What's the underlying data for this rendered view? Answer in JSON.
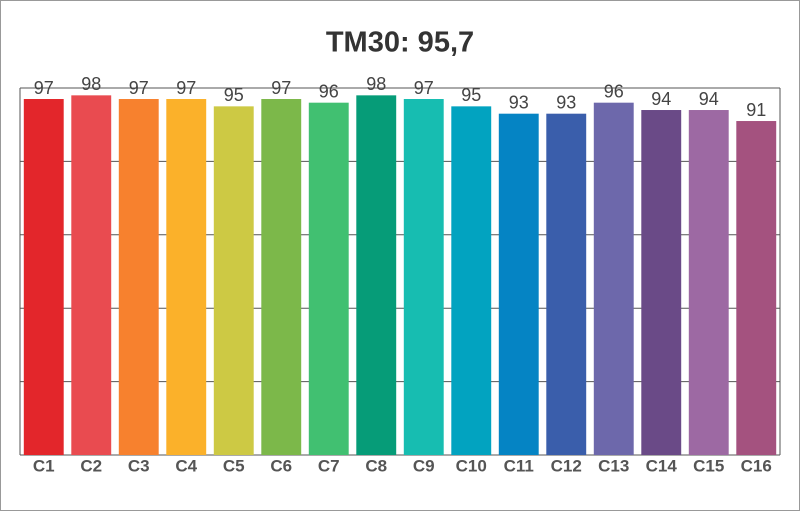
{
  "chart_data": {
    "type": "bar",
    "title": "TM30: 95,7",
    "categories": [
      "C1",
      "C2",
      "C3",
      "C4",
      "C5",
      "C6",
      "C7",
      "C8",
      "C9",
      "C10",
      "C11",
      "C12",
      "C13",
      "C14",
      "C15",
      "C16"
    ],
    "values": [
      97,
      98,
      97,
      97,
      95,
      97,
      96,
      98,
      97,
      95,
      93,
      93,
      96,
      94,
      94,
      91
    ],
    "colors": [
      "#e3262b",
      "#e94b50",
      "#f7812e",
      "#fbb12a",
      "#cdc944",
      "#7cb84a",
      "#41c071",
      "#069c78",
      "#17bdb1",
      "#02a3c0",
      "#0584c4",
      "#3a5eab",
      "#6d68ab",
      "#6a4a87",
      "#9d69a3",
      "#a4527f"
    ],
    "ylim": [
      0,
      100
    ],
    "yticks": [
      0,
      20,
      40,
      60,
      80,
      100
    ],
    "grid": true
  }
}
